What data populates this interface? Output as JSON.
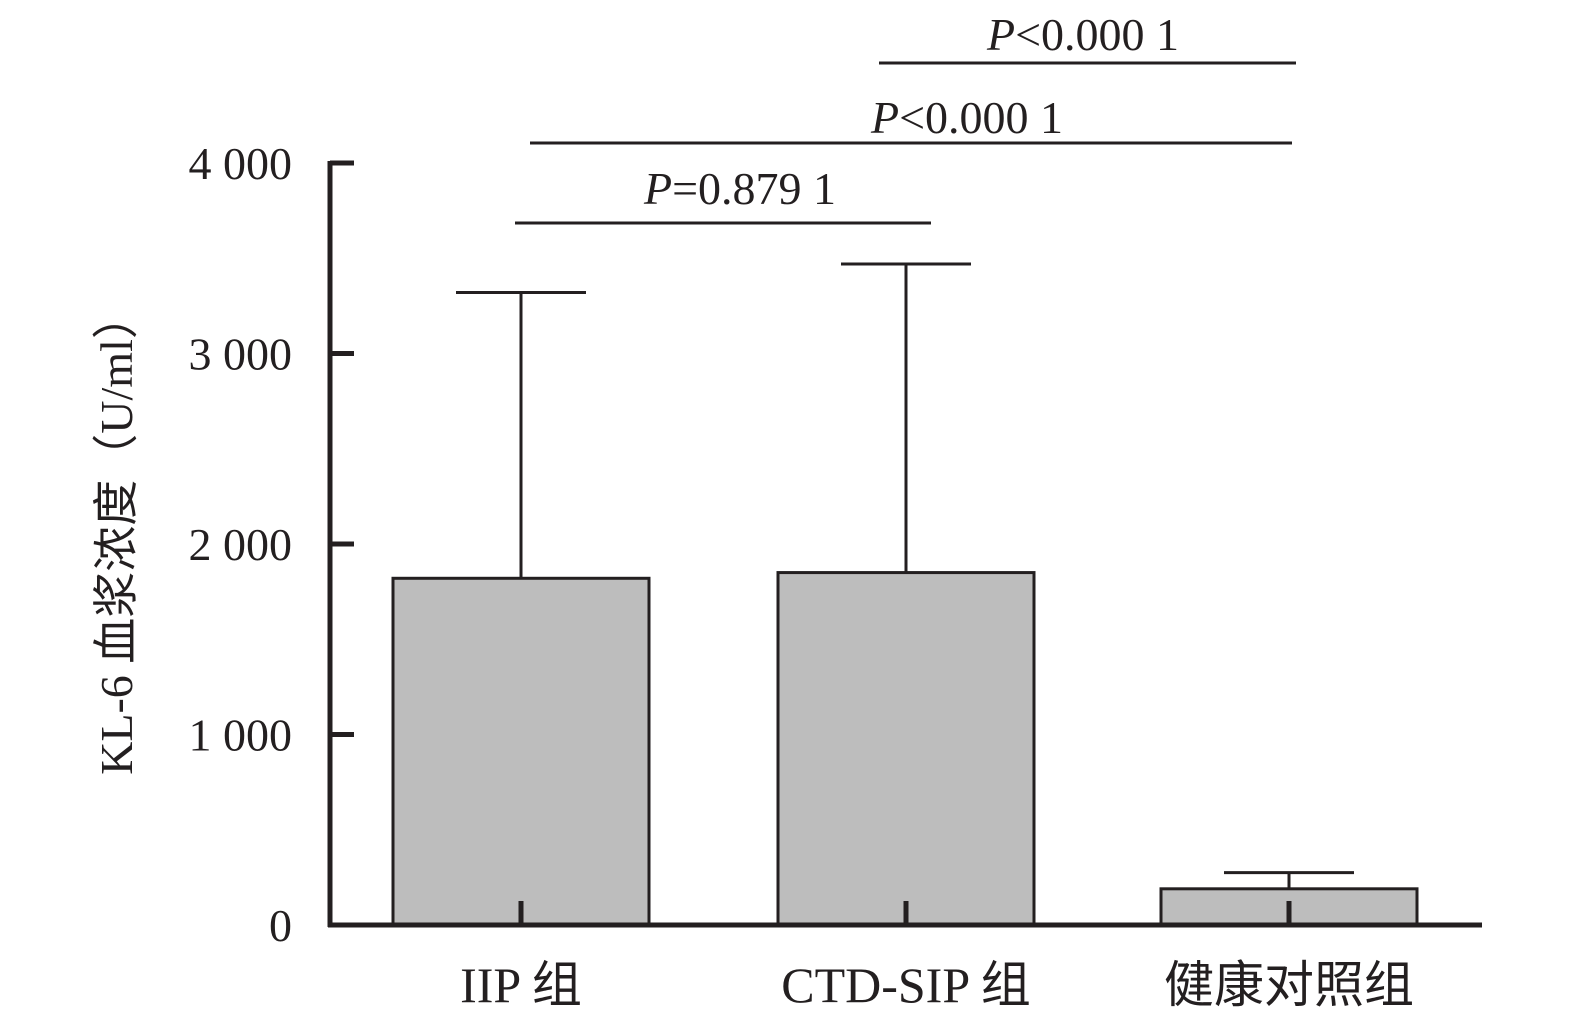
{
  "chart_data": {
    "type": "bar",
    "title": "",
    "xlabel": "",
    "ylabel": "KL-6 血浆浓度（U/ml）",
    "ylim": [
      0,
      4000
    ],
    "yticks": [
      0,
      1000,
      2000,
      3000,
      4000
    ],
    "ytick_labels": [
      "0",
      "1 000",
      "2 000",
      "3 000",
      "4 000"
    ],
    "categories": [
      "IIP 组",
      "CTD-SIP 组",
      "健康对照组"
    ],
    "series": [
      {
        "values": [
          1820,
          1850,
          190
        ],
        "error_upper": [
          3320,
          3470,
          275
        ]
      }
    ],
    "significance": [
      {
        "from": 0,
        "to": 1,
        "p_prefix": "P",
        "p_text": "=0.879 1"
      },
      {
        "from": 0,
        "to": 2,
        "p_prefix": "P",
        "p_text": "<0.000 1"
      },
      {
        "from": 1,
        "to": 2,
        "p_prefix": "P",
        "p_text": "<0.000 1"
      }
    ],
    "grid": false,
    "legend": "none",
    "colors": {
      "bar_fill": "#bdbdbd",
      "ink": "#231f20"
    }
  }
}
